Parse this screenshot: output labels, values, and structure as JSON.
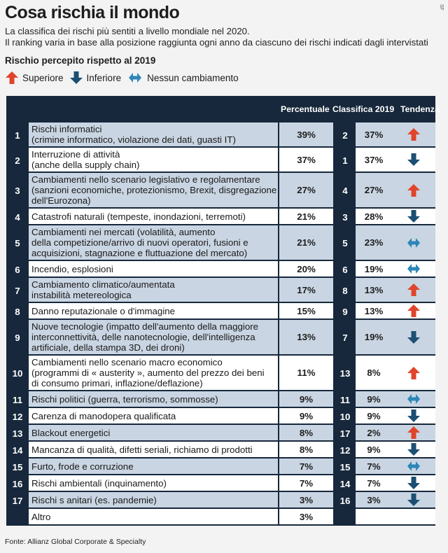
{
  "header": {
    "title": "Cosa rischia il mondo",
    "credit": "SF",
    "subtitle_line1": "La classifica dei rischi più sentiti a livello mondiale nel 2020.",
    "subtitle_line2": "Il ranking varia in base alla posizione raggiunta ogni anno da ciascuno dei rischi indicati dagli intervistati"
  },
  "legend": {
    "title": "Rischio percepito rispetto al 2019",
    "items": [
      {
        "label": "Superiore",
        "icon": "arrow-up-icon",
        "color": "#e0452b"
      },
      {
        "label": "Inferiore",
        "icon": "arrow-down-icon",
        "color": "#1c4f73"
      },
      {
        "label": "Nessun cambiamento",
        "icon": "arrow-both-icon",
        "color": "#2d87b8"
      }
    ]
  },
  "colors": {
    "up": "#e0452b",
    "down": "#1c4f73",
    "same": "#2d87b8",
    "navy": "#17283c",
    "stripe": "#c9d5e2"
  },
  "chart_data": {
    "type": "table",
    "columns": [
      "Percentuale",
      "Classifica 2019",
      "Tendenza"
    ],
    "rows": [
      {
        "rank": "1",
        "label": "Rischi informatici\n(crimine informatico, violazione dei dati, guasti IT)",
        "pct": "39%",
        "rank19": "2",
        "pct19": "37%",
        "trend": "up"
      },
      {
        "rank": "2",
        "label": "Interruzione di attività\n(anche della supply chain)",
        "pct": "37%",
        "rank19": "1",
        "pct19": "37%",
        "trend": "down"
      },
      {
        "rank": "3",
        "label": "Cambiamenti nello scenario legislativo e regolamentare\n(sanzioni economiche, protezionismo, Brexit, disgregazione\ndell'Eurozona)",
        "pct": "27%",
        "rank19": "4",
        "pct19": "27%",
        "trend": "up"
      },
      {
        "rank": "4",
        "label": "Catastrofi naturali (tempeste, inondazioni, terremoti)",
        "pct": "21%",
        "rank19": "3",
        "pct19": "28%",
        "trend": "down"
      },
      {
        "rank": "5",
        "label": "Cambiamenti nei mercati (volatilità, aumento\ndella competizione/arrivo di nuovi operatori, fusioni e\nacquisizioni, stagnazione e fluttuazione del mercato)",
        "pct": "21%",
        "rank19": "5",
        "pct19": "23%",
        "trend": "same"
      },
      {
        "rank": "6",
        "label": "Incendio, esplosioni",
        "pct": "20%",
        "rank19": "6",
        "pct19": "19%",
        "trend": "same"
      },
      {
        "rank": "7",
        "label": "Cambiamento climatico/aumentata\ninstabilità metereologica",
        "pct": "17%",
        "rank19": "8",
        "pct19": "13%",
        "trend": "up"
      },
      {
        "rank": "8",
        "label": "Danno reputazionale o d'immagine",
        "pct": "15%",
        "rank19": "9",
        "pct19": "13%",
        "trend": "up"
      },
      {
        "rank": "9",
        "label": "Nuove tecnologie (impatto dell'aumento della maggiore\ninterconnettività, delle nanotecnologie, dell'intelligenza\nartificiale, della stampa 3D, dei droni)",
        "pct": "13%",
        "rank19": "7",
        "pct19": "19%",
        "trend": "down"
      },
      {
        "rank": "10",
        "label": "Cambiamenti nello scenario macro economico\n(programmi di « austerity », aumento del prezzo dei beni\ndi consumo primari, inflazione/deflazione)",
        "pct": "11%",
        "rank19": "13",
        "pct19": "8%",
        "trend": "up"
      },
      {
        "rank": "11",
        "label": "Rischi politici (guerra, terrorismo, sommosse)",
        "pct": "9%",
        "rank19": "11",
        "pct19": "9%",
        "trend": "same"
      },
      {
        "rank": "12",
        "label": "Carenza di manodopera qualificata",
        "pct": "9%",
        "rank19": "10",
        "pct19": "9%",
        "trend": "down"
      },
      {
        "rank": "13",
        "label": "Blackout energetici",
        "pct": "8%",
        "rank19": "17",
        "pct19": "2%",
        "trend": "up"
      },
      {
        "rank": "14",
        "label": "Mancanza di qualità, difetti seriali, richiamo di prodotti",
        "pct": "8%",
        "rank19": "12",
        "pct19": "9%",
        "trend": "down"
      },
      {
        "rank": "15",
        "label": "Furto, frode e corruzione",
        "pct": "7%",
        "rank19": "15",
        "pct19": "7%",
        "trend": "same"
      },
      {
        "rank": "16",
        "label": "Rischi ambientali (inquinamento)",
        "pct": "7%",
        "rank19": "14",
        "pct19": "7%",
        "trend": "down"
      },
      {
        "rank": "17",
        "label": "Rischi s anitari (es. pandemie)",
        "pct": "3%",
        "rank19": "16",
        "pct19": "3%",
        "trend": "down"
      },
      {
        "rank": "",
        "label": "Altro",
        "pct": "3%",
        "rank19": "",
        "pct19": "",
        "trend": ""
      }
    ]
  },
  "source": "Fonte: Allianz Global Corporate & Specialty"
}
